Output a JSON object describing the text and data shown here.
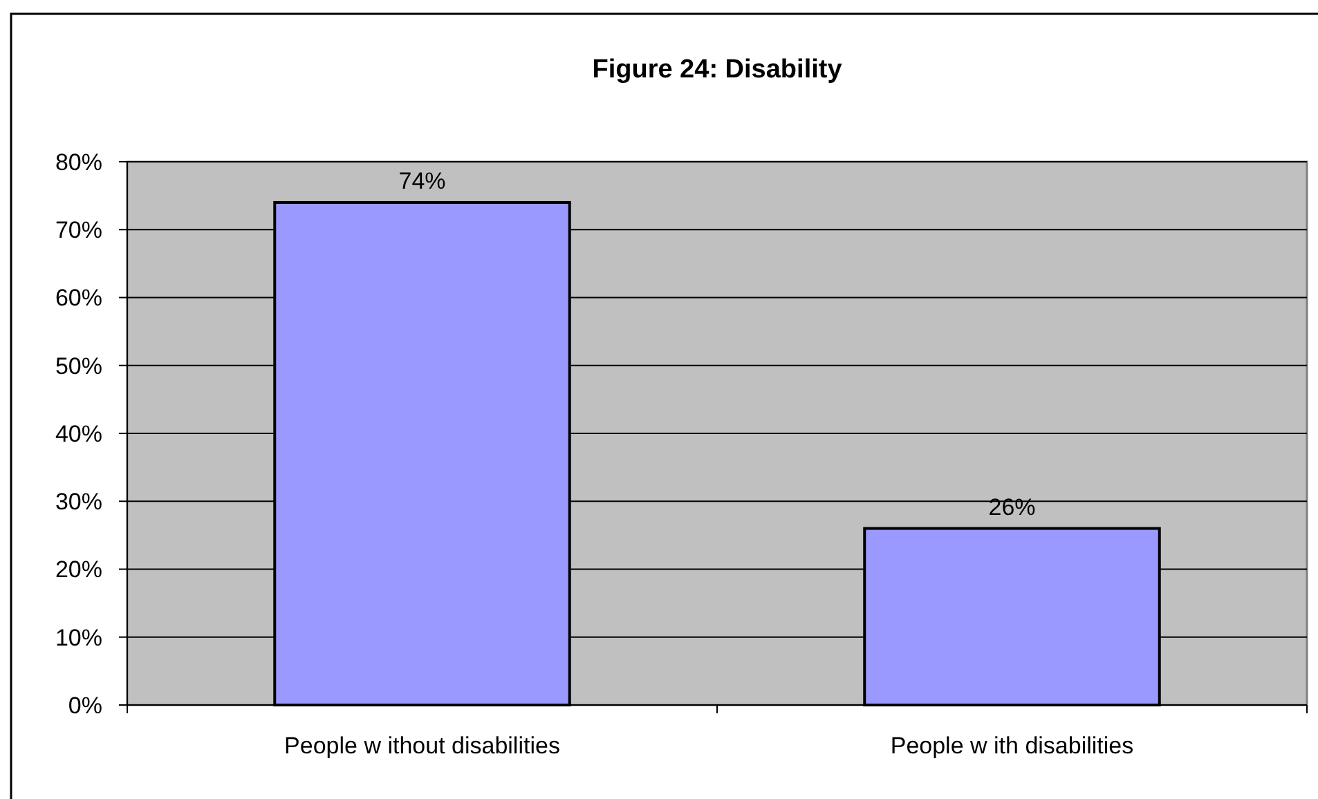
{
  "chart_data": {
    "type": "bar",
    "title": "Figure 24: Disability",
    "categories": [
      "People w ithout disabilities",
      "People w ith disabilities"
    ],
    "values": [
      74,
      26
    ],
    "color": "#9999ff",
    "value_labels": [
      "74%",
      "26%"
    ],
    "ylim": [
      0,
      80
    ],
    "yticks": [
      {
        "value": 0,
        "label": "0%"
      },
      {
        "value": 10,
        "label": "10%"
      },
      {
        "value": 20,
        "label": "20%"
      },
      {
        "value": 30,
        "label": "30%"
      },
      {
        "value": 40,
        "label": "40%"
      },
      {
        "value": 50,
        "label": "50%"
      },
      {
        "value": 60,
        "label": "60%"
      },
      {
        "value": 70,
        "label": "70%"
      },
      {
        "value": 80,
        "label": "80%"
      }
    ],
    "grid": "y"
  }
}
